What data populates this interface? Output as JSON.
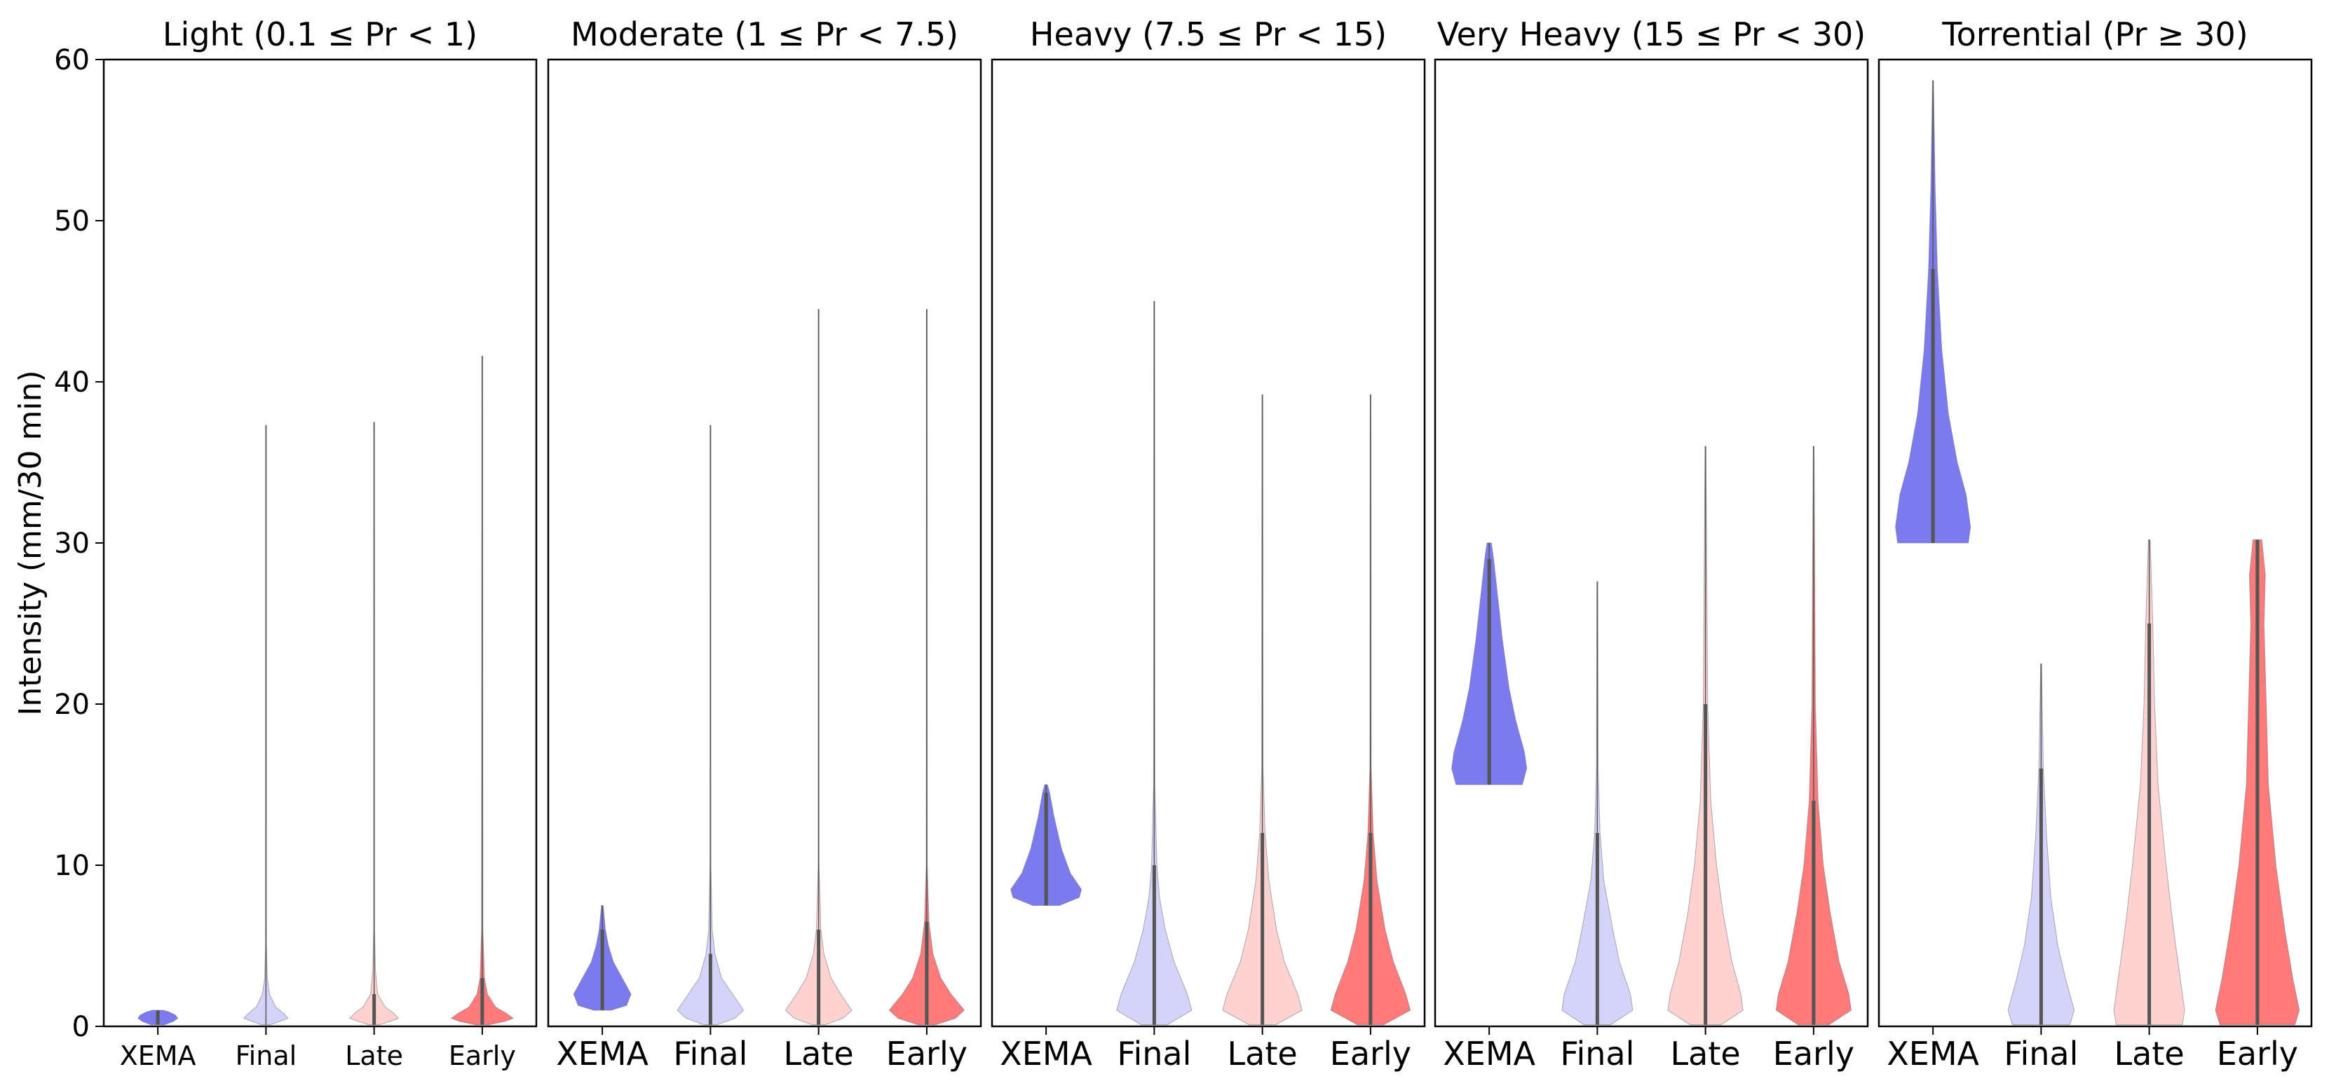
{
  "chart_data": {
    "type": "violin",
    "ylabel": "Intensity (mm/30 min)",
    "ylim": [
      0,
      60
    ],
    "yticks": [
      0,
      10,
      20,
      30,
      40,
      50,
      60
    ],
    "categories": [
      "XEMA",
      "Final",
      "Late",
      "Early"
    ],
    "colors": {
      "XEMA": "#7b7bef",
      "Final": "#d4d4fa",
      "Late": "#ffd2d2",
      "Early": "#ff7b7b",
      "inner": "#555555"
    },
    "panels": [
      {
        "title": "Light (0.1 ≤ Pr < 1)",
        "violins": [
          {
            "category": "XEMA",
            "min": 0.1,
            "max": 1.0,
            "profile": [
              [
                0.1,
                0.15
              ],
              [
                0.3,
                0.35
              ],
              [
                0.5,
                0.45
              ],
              [
                0.7,
                0.4
              ],
              [
                0.9,
                0.25
              ],
              [
                1.0,
                0.12
              ]
            ]
          },
          {
            "category": "Final",
            "min": 0.1,
            "max": 37.3,
            "profile": [
              [
                0.1,
                0.1
              ],
              [
                0.3,
                0.3
              ],
              [
                0.5,
                0.5
              ],
              [
                0.8,
                0.4
              ],
              [
                1.2,
                0.22
              ],
              [
                2.0,
                0.08
              ],
              [
                3.0,
                0.03
              ],
              [
                5.0,
                0.01
              ],
              [
                37.3,
                0.003
              ]
            ]
          },
          {
            "category": "Late",
            "min": 0.1,
            "max": 37.5,
            "profile": [
              [
                0.1,
                0.12
              ],
              [
                0.3,
                0.35
              ],
              [
                0.5,
                0.55
              ],
              [
                0.8,
                0.45
              ],
              [
                1.2,
                0.25
              ],
              [
                2.0,
                0.08
              ],
              [
                3.5,
                0.03
              ],
              [
                6.0,
                0.01
              ],
              [
                37.5,
                0.003
              ]
            ]
          },
          {
            "category": "Early",
            "min": 0.1,
            "max": 41.6,
            "profile": [
              [
                0.1,
                0.15
              ],
              [
                0.3,
                0.5
              ],
              [
                0.5,
                0.7
              ],
              [
                0.8,
                0.55
              ],
              [
                1.2,
                0.3
              ],
              [
                2.0,
                0.12
              ],
              [
                3.0,
                0.05
              ],
              [
                6.0,
                0.015
              ],
              [
                41.6,
                0.003
              ]
            ]
          }
        ]
      },
      {
        "title": "Moderate (1 ≤ Pr < 7.5)",
        "violins": [
          {
            "category": "XEMA",
            "min": 1.0,
            "max": 7.5,
            "profile": [
              [
                1.0,
                0.2
              ],
              [
                1.3,
                0.55
              ],
              [
                2.0,
                0.65
              ],
              [
                3.0,
                0.45
              ],
              [
                4.0,
                0.25
              ],
              [
                5.0,
                0.14
              ],
              [
                6.0,
                0.07
              ],
              [
                7.5,
                0.02
              ]
            ]
          },
          {
            "category": "Final",
            "min": 0.1,
            "max": 37.3,
            "profile": [
              [
                0.1,
                0.15
              ],
              [
                0.5,
                0.55
              ],
              [
                1.0,
                0.75
              ],
              [
                2.0,
                0.5
              ],
              [
                3.0,
                0.25
              ],
              [
                4.5,
                0.1
              ],
              [
                6.0,
                0.04
              ],
              [
                10.0,
                0.01
              ],
              [
                37.3,
                0.003
              ]
            ]
          },
          {
            "category": "Late",
            "min": 0.1,
            "max": 44.5,
            "profile": [
              [
                0.1,
                0.15
              ],
              [
                0.5,
                0.55
              ],
              [
                1.0,
                0.75
              ],
              [
                2.0,
                0.5
              ],
              [
                3.0,
                0.28
              ],
              [
                4.5,
                0.12
              ],
              [
                6.0,
                0.05
              ],
              [
                10.0,
                0.01
              ],
              [
                44.5,
                0.003
              ]
            ]
          },
          {
            "category": "Early",
            "min": 0.1,
            "max": 44.5,
            "profile": [
              [
                0.1,
                0.2
              ],
              [
                0.5,
                0.65
              ],
              [
                1.0,
                0.85
              ],
              [
                2.0,
                0.55
              ],
              [
                3.0,
                0.32
              ],
              [
                4.5,
                0.14
              ],
              [
                6.5,
                0.05
              ],
              [
                10.0,
                0.012
              ],
              [
                44.5,
                0.003
              ]
            ]
          }
        ]
      },
      {
        "title": "Heavy (7.5 ≤ Pr < 15)",
        "violins": [
          {
            "category": "XEMA",
            "min": 7.5,
            "max": 15.0,
            "profile": [
              [
                7.5,
                0.3
              ],
              [
                8.0,
                0.75
              ],
              [
                8.5,
                0.8
              ],
              [
                9.5,
                0.55
              ],
              [
                11.0,
                0.35
              ],
              [
                13.0,
                0.18
              ],
              [
                14.5,
                0.08
              ],
              [
                15.0,
                0.03
              ]
            ]
          },
          {
            "category": "Final",
            "min": 0.1,
            "max": 45.0,
            "profile": [
              [
                0.1,
                0.3
              ],
              [
                1.0,
                0.85
              ],
              [
                2.0,
                0.75
              ],
              [
                4.0,
                0.45
              ],
              [
                6.0,
                0.25
              ],
              [
                8.0,
                0.12
              ],
              [
                10.0,
                0.06
              ],
              [
                15.0,
                0.015
              ],
              [
                45.0,
                0.003
              ]
            ]
          },
          {
            "category": "Late",
            "min": 0.1,
            "max": 39.2,
            "profile": [
              [
                0.1,
                0.3
              ],
              [
                1.0,
                0.9
              ],
              [
                2.0,
                0.8
              ],
              [
                4.0,
                0.5
              ],
              [
                6.0,
                0.32
              ],
              [
                9.0,
                0.15
              ],
              [
                12.0,
                0.06
              ],
              [
                16.0,
                0.015
              ],
              [
                39.2,
                0.003
              ]
            ]
          },
          {
            "category": "Early",
            "min": 0.1,
            "max": 39.2,
            "profile": [
              [
                0.1,
                0.3
              ],
              [
                1.0,
                0.9
              ],
              [
                2.0,
                0.8
              ],
              [
                4.0,
                0.52
              ],
              [
                6.0,
                0.33
              ],
              [
                9.0,
                0.15
              ],
              [
                12.0,
                0.06
              ],
              [
                16.0,
                0.015
              ],
              [
                39.2,
                0.003
              ]
            ]
          }
        ]
      },
      {
        "title": "Very Heavy (15 ≤ Pr < 30)",
        "violins": [
          {
            "category": "XEMA",
            "min": 15.0,
            "max": 30.0,
            "profile": [
              [
                15.0,
                0.75
              ],
              [
                16.0,
                0.85
              ],
              [
                17.0,
                0.8
              ],
              [
                19.0,
                0.6
              ],
              [
                21.0,
                0.45
              ],
              [
                24.0,
                0.3
              ],
              [
                27.0,
                0.18
              ],
              [
                29.0,
                0.1
              ],
              [
                30.0,
                0.05
              ]
            ]
          },
          {
            "category": "Final",
            "min": 0.1,
            "max": 27.6,
            "profile": [
              [
                0.1,
                0.3
              ],
              [
                1.0,
                0.8
              ],
              [
                2.0,
                0.75
              ],
              [
                4.0,
                0.5
              ],
              [
                6.0,
                0.35
              ],
              [
                9.0,
                0.15
              ],
              [
                12.0,
                0.06
              ],
              [
                16.0,
                0.02
              ],
              [
                27.6,
                0.004
              ]
            ]
          },
          {
            "category": "Late",
            "min": 0.1,
            "max": 36.0,
            "profile": [
              [
                0.1,
                0.35
              ],
              [
                1.0,
                0.85
              ],
              [
                2.0,
                0.8
              ],
              [
                4.0,
                0.6
              ],
              [
                7.0,
                0.4
              ],
              [
                10.0,
                0.25
              ],
              [
                14.0,
                0.12
              ],
              [
                20.0,
                0.05
              ],
              [
                36.0,
                0.005
              ]
            ]
          },
          {
            "category": "Early",
            "min": 0.1,
            "max": 36.0,
            "profile": [
              [
                0.1,
                0.35
              ],
              [
                1.0,
                0.85
              ],
              [
                2.0,
                0.8
              ],
              [
                4.0,
                0.58
              ],
              [
                7.0,
                0.38
              ],
              [
                10.0,
                0.22
              ],
              [
                14.0,
                0.1
              ],
              [
                20.0,
                0.04
              ],
              [
                36.0,
                0.005
              ]
            ]
          }
        ]
      },
      {
        "title": "Torrential (Pr ≥ 30)",
        "violins": [
          {
            "category": "XEMA",
            "min": 30.0,
            "max": 58.7,
            "profile": [
              [
                30.0,
                0.8
              ],
              [
                31.0,
                0.85
              ],
              [
                33.0,
                0.75
              ],
              [
                35.0,
                0.55
              ],
              [
                38.0,
                0.35
              ],
              [
                42.0,
                0.2
              ],
              [
                47.0,
                0.1
              ],
              [
                52.0,
                0.05
              ],
              [
                58.7,
                0.01
              ]
            ]
          },
          {
            "category": "Final",
            "min": 0.1,
            "max": 22.5,
            "profile": [
              [
                0.1,
                0.65
              ],
              [
                1.0,
                0.75
              ],
              [
                3.0,
                0.55
              ],
              [
                5.0,
                0.38
              ],
              [
                8.0,
                0.22
              ],
              [
                12.0,
                0.12
              ],
              [
                16.0,
                0.05
              ],
              [
                22.5,
                0.01
              ]
            ]
          },
          {
            "category": "Late",
            "min": 0.1,
            "max": 30.2,
            "profile": [
              [
                0.1,
                0.75
              ],
              [
                1.0,
                0.8
              ],
              [
                3.0,
                0.7
              ],
              [
                6.0,
                0.55
              ],
              [
                10.0,
                0.38
              ],
              [
                15.0,
                0.2
              ],
              [
                20.0,
                0.12
              ],
              [
                25.0,
                0.08
              ],
              [
                30.2,
                0.02
              ]
            ]
          },
          {
            "category": "Early",
            "min": 0.1,
            "max": 30.2,
            "profile": [
              [
                0.1,
                0.85
              ],
              [
                1.0,
                0.95
              ],
              [
                3.0,
                0.8
              ],
              [
                6.0,
                0.62
              ],
              [
                10.0,
                0.42
              ],
              [
                15.0,
                0.25
              ],
              [
                20.0,
                0.2
              ],
              [
                25.0,
                0.15
              ],
              [
                28.0,
                0.18
              ],
              [
                30.2,
                0.1
              ]
            ]
          }
        ]
      }
    ]
  }
}
